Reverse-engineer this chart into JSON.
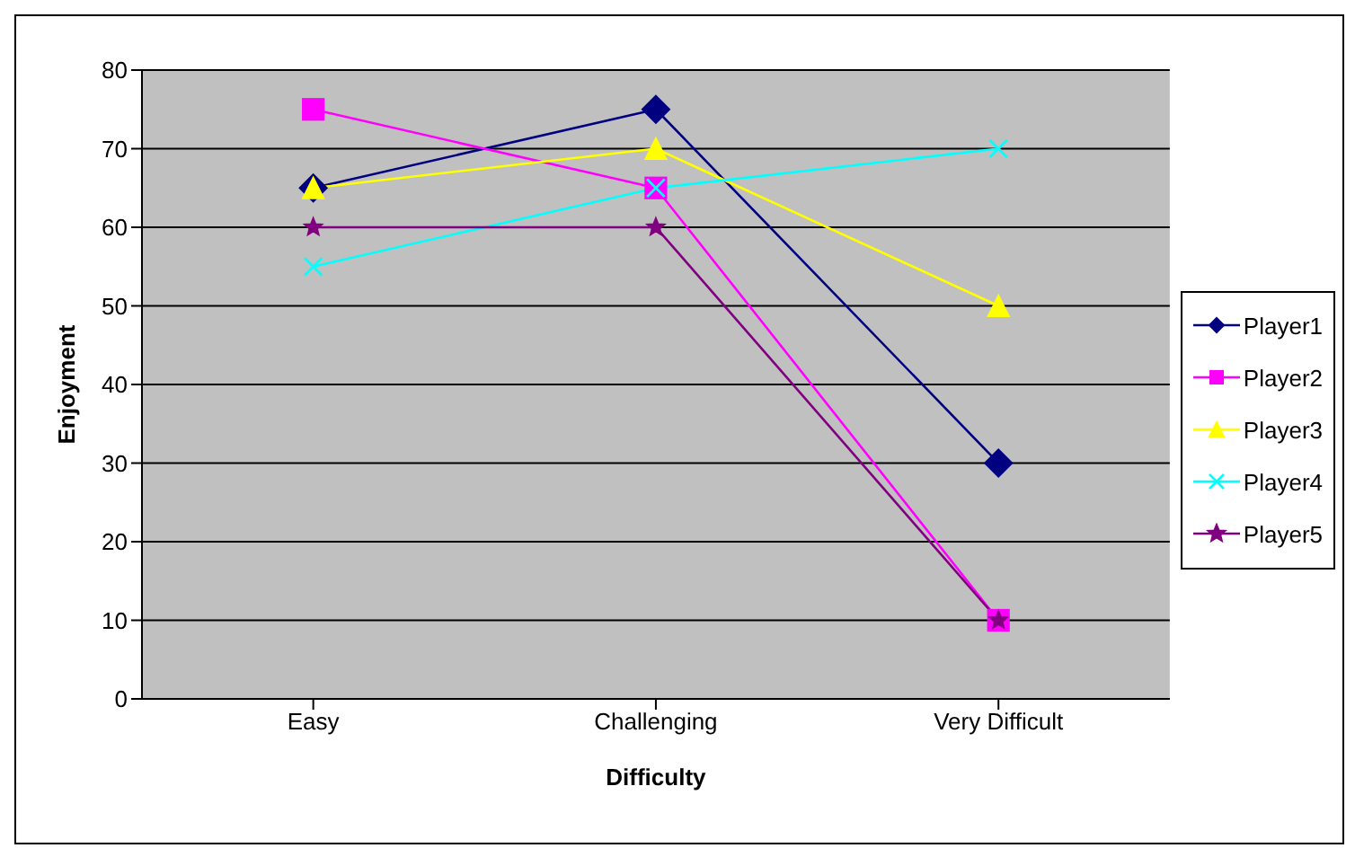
{
  "chart_data": {
    "type": "line",
    "xlabel": "Difficulty",
    "ylabel": "Enjoyment",
    "categories": [
      "Easy",
      "Challenging",
      "Very Difficult"
    ],
    "series": [
      {
        "name": "Player1",
        "color": "#000080",
        "marker": "diamond",
        "values": [
          65,
          75,
          30
        ]
      },
      {
        "name": "Player2",
        "color": "#ff00ff",
        "marker": "square",
        "values": [
          75,
          65,
          10
        ]
      },
      {
        "name": "Player3",
        "color": "#ffff00",
        "marker": "triangle",
        "values": [
          65,
          70,
          50
        ]
      },
      {
        "name": "Player4",
        "color": "#00ffff",
        "marker": "cross",
        "values": [
          55,
          65,
          70
        ]
      },
      {
        "name": "Player5",
        "color": "#800080",
        "marker": "star",
        "values": [
          60,
          60,
          10
        ]
      }
    ],
    "ylim": [
      0,
      80
    ],
    "yticks": [
      0,
      10,
      20,
      30,
      40,
      50,
      60,
      70,
      80
    ],
    "grid": "y",
    "legend": "right"
  }
}
